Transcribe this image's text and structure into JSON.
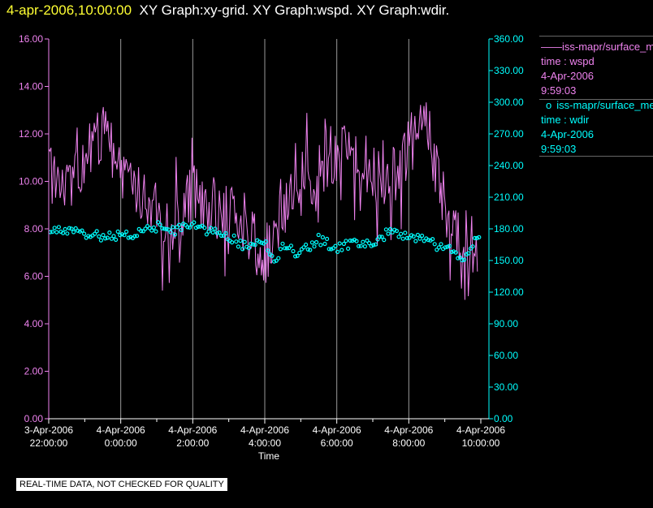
{
  "header": {
    "timestamp": "4-apr-2006,10:00:00",
    "graphs": "XY Graph:xy-grid.  XY Graph:wspd.  XY Graph:wdir."
  },
  "colors": {
    "wspd": "#ee82ee",
    "wdir": "#00ffff",
    "grid": "#9a9a9a",
    "axis_text": "#ffffff"
  },
  "legend": {
    "wspd": {
      "marker": "——",
      "source": "iss-mapr/surface_met",
      "time_label": "time : wspd",
      "date": "4-Apr-2006",
      "time": "9:59:03"
    },
    "wdir": {
      "marker": "o",
      "source": "iss-mapr/surface_met",
      "time_label": "time : wdir",
      "date": "4-Apr-2006",
      "time": "9:59:03"
    }
  },
  "note": "REAL-TIME DATA, NOT CHECKED FOR QUALITY",
  "chart_data": {
    "type": "line",
    "xlabel": "Time",
    "x_range": [
      "2006-04-03 22:00:00",
      "2006-04-04 10:00:00"
    ],
    "x_ticks": [
      {
        "date": "3-Apr-2006",
        "time": "22:00:00"
      },
      {
        "date": "4-Apr-2006",
        "time": "0:00:00"
      },
      {
        "date": "4-Apr-2006",
        "time": "2:00:00"
      },
      {
        "date": "4-Apr-2006",
        "time": "4:00:00"
      },
      {
        "date": "4-Apr-2006",
        "time": "6:00:00"
      },
      {
        "date": "4-Apr-2006",
        "time": "8:00:00"
      },
      {
        "date": "4-Apr-2006",
        "time": "10:00:00"
      }
    ],
    "y_left": {
      "range": [
        0,
        16
      ],
      "ticks": [
        "0.00",
        "2.00",
        "4.00",
        "6.00",
        "8.00",
        "10.00",
        "12.00",
        "14.00",
        "16.00"
      ]
    },
    "y_right": {
      "range": [
        0,
        360
      ],
      "ticks": [
        "0.00",
        "30.00",
        "60.00",
        "90.00",
        "120.00",
        "150.00",
        "180.00",
        "210.00",
        "240.00",
        "270.00",
        "300.00",
        "330.00",
        "360.00"
      ]
    },
    "grid": "vertical",
    "legend_position": "right",
    "series": [
      {
        "axis": "left",
        "x": [
          "2006-04-03 22:00",
          "2006-04-03 22:30",
          "2006-04-03 23:00",
          "2006-04-03 23:30",
          "2006-04-04 00:00",
          "2006-04-04 00:30",
          "2006-04-04 01:00",
          "2006-04-04 01:30",
          "2006-04-04 02:00",
          "2006-04-04 02:30",
          "2006-04-04 03:00",
          "2006-04-04 03:30",
          "2006-04-04 04:00",
          "2006-04-04 04:30",
          "2006-04-04 05:00",
          "2006-04-04 05:30",
          "2006-04-04 06:00",
          "2006-04-04 06:30",
          "2006-04-04 07:00",
          "2006-04-04 07:30",
          "2006-04-04 08:00",
          "2006-04-04 08:30",
          "2006-04-04 09:00",
          "2006-04-04 09:30",
          "2006-04-04 10:00"
        ],
        "values": [
          10.2,
          9.8,
          11.0,
          12.0,
          10.5,
          9.5,
          8.6,
          8.0,
          9.5,
          9.0,
          8.5,
          8.0,
          6.8,
          8.8,
          9.5,
          10.5,
          11.3,
          11.0,
          10.5,
          10.0,
          11.5,
          12.3,
          9.0,
          7.5,
          7.8
        ]
      },
      {
        "axis": "right",
        "x": [
          "2006-04-03 22:00",
          "2006-04-03 22:30",
          "2006-04-03 23:00",
          "2006-04-03 23:30",
          "2006-04-04 00:00",
          "2006-04-04 00:30",
          "2006-04-04 01:00",
          "2006-04-04 01:30",
          "2006-04-04 02:00",
          "2006-04-04 02:30",
          "2006-04-04 03:00",
          "2006-04-04 03:30",
          "2006-04-04 04:00",
          "2006-04-04 04:15",
          "2006-04-04 04:30",
          "2006-04-04 05:00",
          "2006-04-04 05:30",
          "2006-04-04 06:00",
          "2006-04-04 06:30",
          "2006-04-04 07:00",
          "2006-04-04 07:30",
          "2006-04-04 08:00",
          "2006-04-04 08:30",
          "2006-04-04 09:00",
          "2006-04-04 09:30",
          "2006-04-04 10:00"
        ],
        "values": [
          177,
          178,
          176,
          173,
          173,
          175,
          182,
          179,
          184,
          178,
          172,
          163,
          170,
          147,
          162,
          157,
          170,
          162,
          166,
          166,
          178,
          173,
          168,
          162,
          152,
          176
        ]
      }
    ]
  }
}
